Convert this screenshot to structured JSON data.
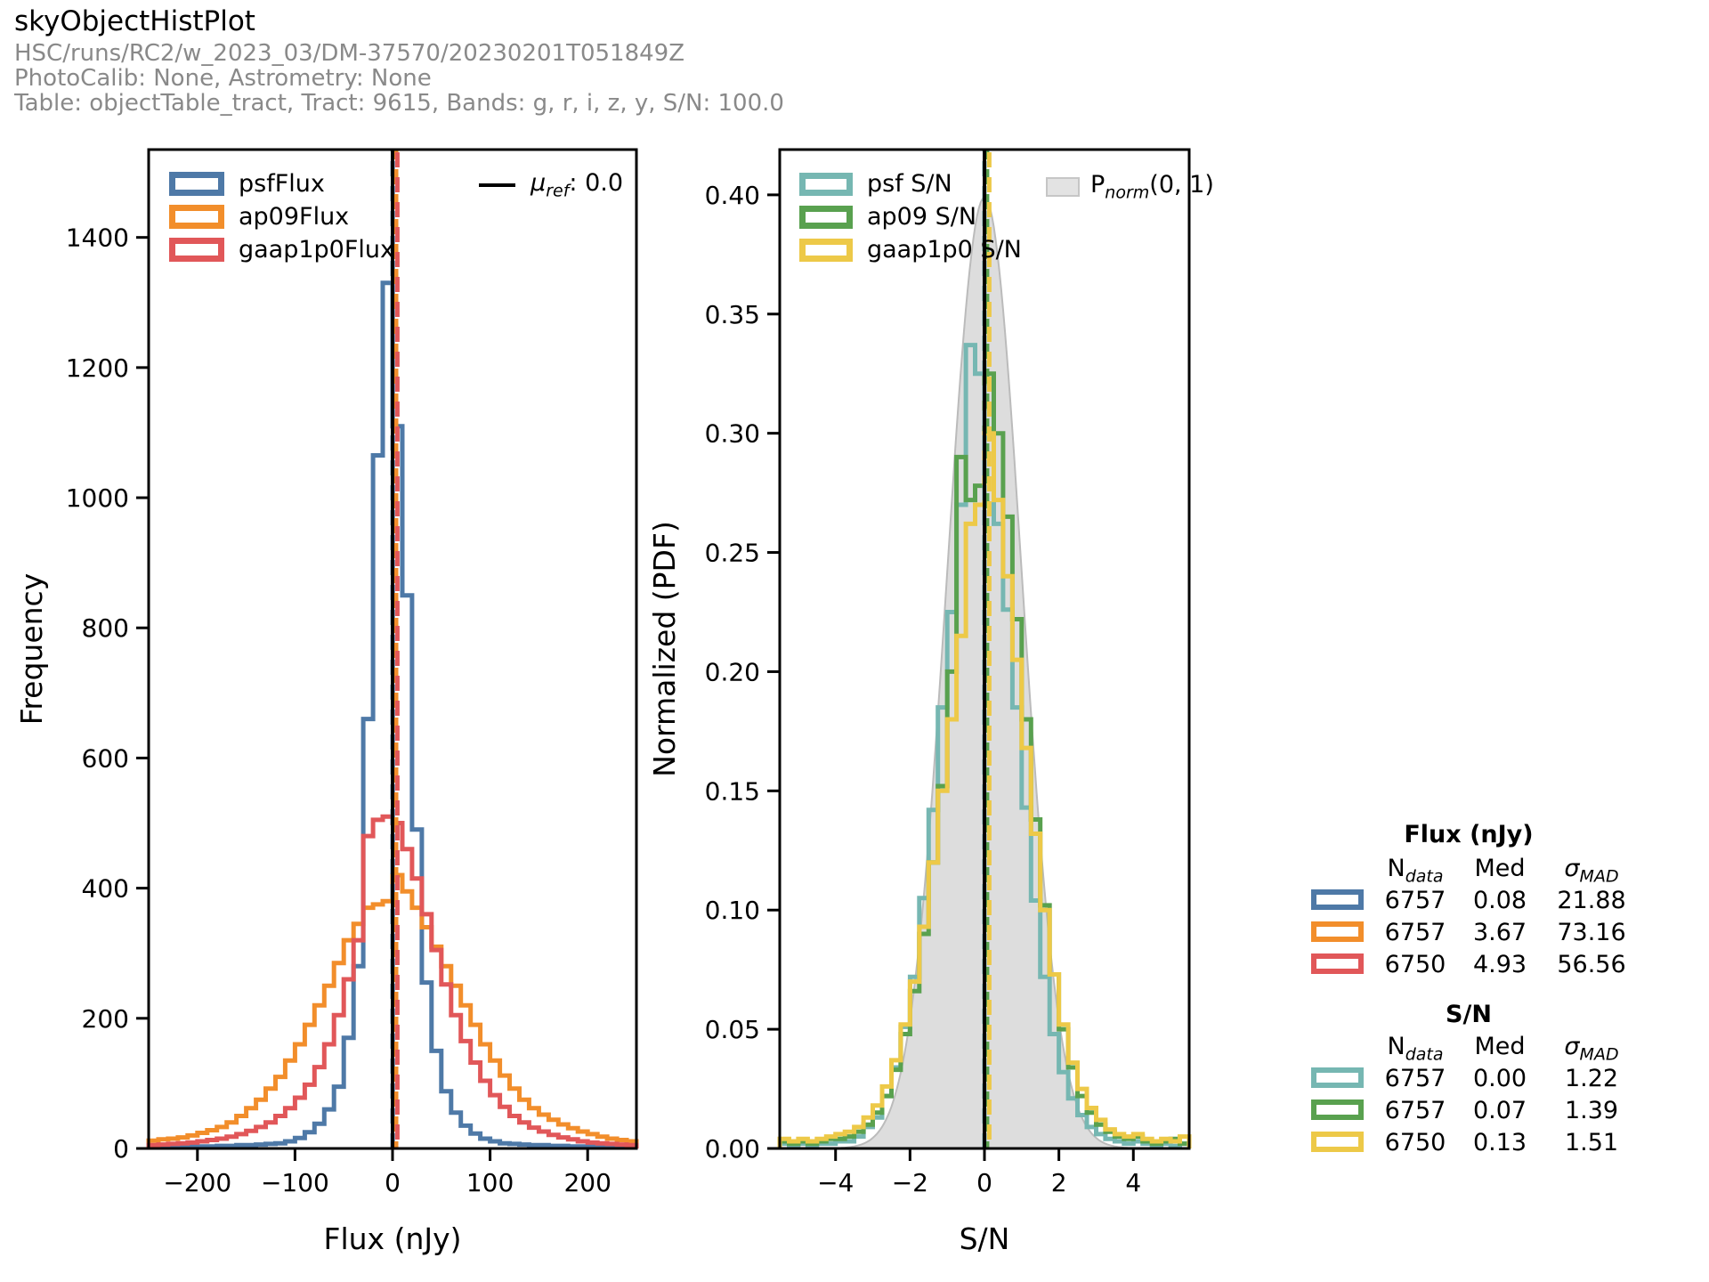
{
  "header": {
    "title": "skyObjectHistPlot",
    "run": "HSC/runs/RC2/w_2023_03/DM-37570/20230201T051849Z",
    "calib": "PhotoCalib: None, Astrometry: None",
    "table_info": "Table: objectTable_tract, Tract: 9615, Bands: g, r, i, z, y, S/N: 100.0"
  },
  "colors": {
    "psf_flux": "#4e79a7",
    "ap09_flux": "#f28e2b",
    "gaap_flux": "#e15759",
    "psf_sn": "#76b7b2",
    "ap09_sn": "#59a14f",
    "gaap_sn": "#edc948",
    "ref_line": "#000000",
    "norm_fill": "#d2d2d2",
    "header_gray": "#898989"
  },
  "legends": {
    "flux_hist": {
      "items": [
        {
          "label": "psfFlux",
          "color_key": "psf_flux"
        },
        {
          "label": "ap09Flux",
          "color_key": "ap09_flux"
        },
        {
          "label": "gaap1p0Flux",
          "color_key": "gaap_flux"
        }
      ]
    },
    "muref": {
      "prefix": "μ",
      "sub": "ref",
      "suffix": ": 0.0"
    },
    "sn_hist": {
      "items": [
        {
          "label": "psf S/N",
          "color_key": "psf_sn"
        },
        {
          "label": "ap09 S/N",
          "color_key": "ap09_sn"
        },
        {
          "label": "gaap1p0 S/N",
          "color_key": "gaap_sn"
        }
      ]
    },
    "pnorm": {
      "prefix": "P",
      "sub": "norm",
      "suffix": "(0, 1)"
    }
  },
  "stats": {
    "headers": {
      "n_prefix": "N",
      "n_sub": "data",
      "med": "Med",
      "sigma_prefix": "σ",
      "sigma_sub": "MAD"
    },
    "flux": {
      "title": "Flux (nJy)",
      "rows": [
        {
          "color_key": "psf_flux",
          "n": "6757",
          "med": "0.08",
          "sigma": "21.88"
        },
        {
          "color_key": "ap09_flux",
          "n": "6757",
          "med": "3.67",
          "sigma": "73.16"
        },
        {
          "color_key": "gaap_flux",
          "n": "6750",
          "med": "4.93",
          "sigma": "56.56"
        }
      ]
    },
    "sn": {
      "title": "S/N",
      "rows": [
        {
          "color_key": "psf_sn",
          "n": "6757",
          "med": "0.00",
          "sigma": "1.22"
        },
        {
          "color_key": "ap09_sn",
          "n": "6757",
          "med": "0.07",
          "sigma": "1.39"
        },
        {
          "color_key": "gaap_sn",
          "n": "6750",
          "med": "0.13",
          "sigma": "1.51"
        }
      ]
    }
  },
  "chart_data": [
    {
      "name": "flux-histogram",
      "type": "step-histogram",
      "xlabel": "Flux (nJy)",
      "ylabel": "Frequency",
      "xlim": [
        -250,
        250
      ],
      "ylim": [
        0,
        1535
      ],
      "xticks": [
        -200,
        -100,
        0,
        100,
        200
      ],
      "yticks": [
        0,
        200,
        400,
        600,
        800,
        1000,
        1200,
        1400
      ],
      "xtick_decimals": 0,
      "ytick_decimals": 0,
      "bin_start": -250,
      "bin_width": 10,
      "series": [
        {
          "name": "psfFlux",
          "color_key": "psf_flux",
          "values": [
            2,
            2,
            2,
            3,
            3,
            3,
            3,
            4,
            4,
            5,
            5,
            6,
            7,
            8,
            11,
            16,
            25,
            38,
            60,
            95,
            170,
            280,
            660,
            1065,
            1330,
            1110,
            850,
            490,
            255,
            150,
            88,
            55,
            35,
            23,
            15,
            11,
            8,
            7,
            6,
            5,
            5,
            4,
            4,
            3,
            3,
            3,
            3,
            2,
            2,
            2
          ]
        },
        {
          "name": "ap09Flux",
          "color_key": "ap09_flux",
          "values": [
            12,
            14,
            15,
            17,
            20,
            24,
            28,
            33,
            40,
            50,
            62,
            75,
            92,
            110,
            135,
            160,
            190,
            220,
            250,
            285,
            320,
            345,
            370,
            375,
            380,
            420,
            395,
            370,
            340,
            310,
            280,
            250,
            220,
            190,
            160,
            135,
            112,
            92,
            75,
            62,
            52,
            44,
            37,
            31,
            26,
            22,
            18,
            15,
            13,
            11
          ]
        },
        {
          "name": "gaap1p0Flux",
          "color_key": "gaap_flux",
          "values": [
            5,
            6,
            7,
            8,
            9,
            11,
            13,
            15,
            18,
            22,
            27,
            33,
            40,
            50,
            62,
            78,
            98,
            125,
            160,
            205,
            260,
            320,
            480,
            505,
            510,
            500,
            460,
            415,
            360,
            305,
            252,
            205,
            165,
            132,
            104,
            82,
            64,
            50,
            40,
            32,
            26,
            21,
            17,
            14,
            11,
            9,
            8,
            7,
            6,
            5
          ]
        }
      ],
      "ref_line": {
        "x": 0,
        "label": "mu_ref: 0.0"
      },
      "median_lines": [
        {
          "x": 0.08,
          "color_key": "psf_flux"
        },
        {
          "x": 3.67,
          "color_key": "ap09_flux"
        },
        {
          "x": 4.93,
          "color_key": "gaap_flux"
        }
      ]
    },
    {
      "name": "sn-histogram",
      "type": "step-histogram",
      "xlabel": "S/N",
      "ylabel": "Normalized (PDF)",
      "xlim": [
        -5.5,
        5.5
      ],
      "ylim": [
        0,
        0.419
      ],
      "xticks": [
        -4,
        -2,
        0,
        2,
        4
      ],
      "yticks": [
        0,
        0.05,
        0.1,
        0.15,
        0.2,
        0.25,
        0.3,
        0.35,
        0.4
      ],
      "xtick_decimals": 0,
      "ytick_decimals": 2,
      "bin_start": -5.5,
      "bin_width": 0.25,
      "series": [
        {
          "name": "psf S/N",
          "color_key": "psf_sn",
          "values": [
            0.002,
            0.001,
            0.002,
            0.001,
            0.002,
            0.002,
            0.003,
            0.003,
            0.005,
            0.009,
            0.013,
            0.022,
            0.034,
            0.051,
            0.072,
            0.105,
            0.142,
            0.185,
            0.225,
            0.27,
            0.337,
            0.325,
            0.298,
            0.262,
            0.226,
            0.185,
            0.143,
            0.104,
            0.072,
            0.048,
            0.032,
            0.021,
            0.014,
            0.009,
            0.006,
            0.004,
            0.003,
            0.002,
            0.003,
            0.002,
            0.001,
            0.002,
            0.001,
            0.002
          ]
        },
        {
          "name": "ap09 S/N",
          "color_key": "ap09_sn",
          "values": [
            0.003,
            0.002,
            0.003,
            0.002,
            0.003,
            0.004,
            0.004,
            0.005,
            0.007,
            0.01,
            0.015,
            0.022,
            0.033,
            0.048,
            0.066,
            0.09,
            0.12,
            0.152,
            0.2,
            0.29,
            0.272,
            0.278,
            0.325,
            0.3,
            0.265,
            0.222,
            0.18,
            0.138,
            0.102,
            0.073,
            0.05,
            0.034,
            0.022,
            0.015,
            0.01,
            0.007,
            0.005,
            0.004,
            0.005,
            0.003,
            0.002,
            0.003,
            0.004,
            0.002
          ]
        },
        {
          "name": "gaap1p0 S/N",
          "color_key": "gaap_sn",
          "values": [
            0.004,
            0.003,
            0.004,
            0.003,
            0.004,
            0.005,
            0.006,
            0.007,
            0.009,
            0.013,
            0.018,
            0.026,
            0.037,
            0.052,
            0.07,
            0.093,
            0.12,
            0.15,
            0.18,
            0.215,
            0.262,
            0.27,
            0.3,
            0.272,
            0.24,
            0.205,
            0.168,
            0.132,
            0.1,
            0.073,
            0.052,
            0.036,
            0.025,
            0.017,
            0.012,
            0.008,
            0.006,
            0.005,
            0.006,
            0.004,
            0.003,
            0.004,
            0.003,
            0.005
          ]
        }
      ],
      "normal_curve": {
        "mu": 0,
        "sigma": 1,
        "amplitude": 0.3989,
        "label": "P_norm(0, 1)"
      },
      "ref_line": {
        "x": 0
      },
      "median_lines": [
        {
          "x": 0.0,
          "color_key": "psf_sn"
        },
        {
          "x": 0.07,
          "color_key": "ap09_sn"
        },
        {
          "x": 0.13,
          "color_key": "gaap_sn"
        }
      ]
    }
  ]
}
